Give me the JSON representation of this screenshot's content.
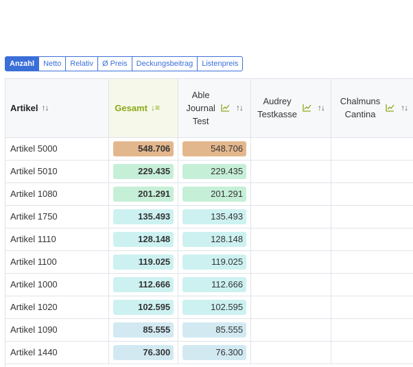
{
  "tabs": [
    {
      "label": "Anzahl",
      "active": true
    },
    {
      "label": "Netto",
      "active": false
    },
    {
      "label": "Relativ",
      "active": false
    },
    {
      "label": "Ø Preis",
      "active": false
    },
    {
      "label": "Deckungsbeitrag",
      "active": false
    },
    {
      "label": "Listenpreis",
      "active": false
    }
  ],
  "columns": {
    "artikel": "Artikel",
    "gesamt": "Gesamt",
    "col1": [
      "Able",
      "Journal",
      "Test"
    ],
    "col2": [
      "Audrey",
      "Testkasse"
    ],
    "col3": [
      "Chalmuns",
      "Cantina"
    ]
  },
  "icons": {
    "sort": "sort-updown-icon",
    "sort_desc": "sort-desc-icon",
    "chart": "line-chart-icon"
  },
  "colors": {
    "accent": "#3b6fd8",
    "gesamt_header": "#8aaa1a",
    "heat_orange": "#e3b78d",
    "heat_green": "#c6efd8",
    "heat_cyan": "#cdf1f1",
    "heat_blue": "#d2e9f2"
  },
  "rows": [
    {
      "name": "Artikel 5000",
      "gesamt": "548.706",
      "col1": "548.706",
      "color": "#e3b78d"
    },
    {
      "name": "Artikel 5010",
      "gesamt": "229.435",
      "col1": "229.435",
      "color": "#c6efd8"
    },
    {
      "name": "Artikel 1080",
      "gesamt": "201.291",
      "col1": "201.291",
      "color": "#c6efd8"
    },
    {
      "name": "Artikel 1750",
      "gesamt": "135.493",
      "col1": "135.493",
      "color": "#cdf1f1"
    },
    {
      "name": "Artikel 1110",
      "gesamt": "128.148",
      "col1": "128.148",
      "color": "#cdf1f1"
    },
    {
      "name": "Artikel 1100",
      "gesamt": "119.025",
      "col1": "119.025",
      "color": "#cdf1f1"
    },
    {
      "name": "Artikel 1000",
      "gesamt": "112.666",
      "col1": "112.666",
      "color": "#cdf1f1"
    },
    {
      "name": "Artikel 1020",
      "gesamt": "102.595",
      "col1": "102.595",
      "color": "#cdf1f1"
    },
    {
      "name": "Artikel 1090",
      "gesamt": "85.555",
      "col1": "85.555",
      "color": "#d2e9f2"
    },
    {
      "name": "Artikel 1440",
      "gesamt": "76.300",
      "col1": "76.300",
      "color": "#d2e9f2"
    }
  ]
}
